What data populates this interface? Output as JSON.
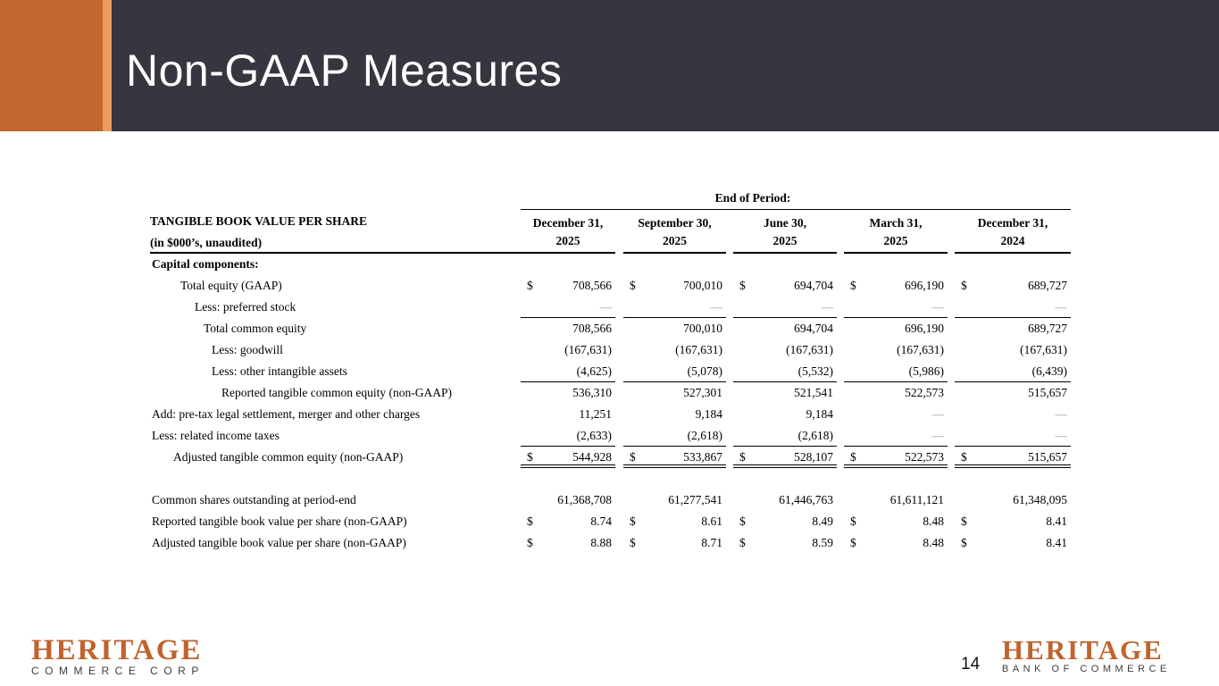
{
  "slide": {
    "title": "Non-GAAP Measures",
    "page_number": "14"
  },
  "colors": {
    "accent_orange": "#C2672F",
    "accent_orange_light": "#EE9B5F",
    "header_dark": "#37353F",
    "logo_orange": "#C0632E",
    "logo_text_dark": "#3D3D3D"
  },
  "table": {
    "group_header": "End of Period:",
    "title_line1": "TANGIBLE BOOK VALUE PER SHARE",
    "title_line2": "(in $000’s, unaudited)",
    "dollar_sign": "$",
    "columns": [
      {
        "month": "December 31,",
        "year": "2025"
      },
      {
        "month": "September 30,",
        "year": "2025"
      },
      {
        "month": "June 30,",
        "year": "2025"
      },
      {
        "month": "March 31,",
        "year": "2025"
      },
      {
        "month": "December 31,",
        "year": "2024"
      }
    ],
    "rows": [
      {
        "label": "Capital components:",
        "values": [
          "",
          "",
          "",
          "",
          ""
        ]
      },
      {
        "label": "Total equity (GAAP)",
        "dollar": true,
        "values": [
          "708,566",
          "700,010",
          "694,704",
          "696,190",
          "689,727"
        ]
      },
      {
        "label": "Less: preferred stock",
        "values": [
          "—",
          "—",
          "—",
          "—",
          "—"
        ]
      },
      {
        "label": "Total common equity",
        "values": [
          "708,566",
          "700,010",
          "694,704",
          "696,190",
          "689,727"
        ]
      },
      {
        "label": "Less: goodwill",
        "values": [
          "(167,631)",
          "(167,631)",
          "(167,631)",
          "(167,631)",
          "(167,631)"
        ]
      },
      {
        "label": "Less: other intangible assets",
        "values": [
          "(4,625)",
          "(5,078)",
          "(5,532)",
          "(5,986)",
          "(6,439)"
        ]
      },
      {
        "label": "Reported tangible common equity (non-GAAP)",
        "values": [
          "536,310",
          "527,301",
          "521,541",
          "522,573",
          "515,657"
        ]
      },
      {
        "label": "Add: pre-tax legal settlement, merger and other charges",
        "values": [
          "11,251",
          "9,184",
          "9,184",
          "—",
          "—"
        ]
      },
      {
        "label": "Less: related income taxes",
        "values": [
          "(2,633)",
          "(2,618)",
          "(2,618)",
          "—",
          "—"
        ]
      },
      {
        "label": "Adjusted tangible common equity (non-GAAP)",
        "dollar": true,
        "values": [
          "544,928",
          "533,867",
          "528,107",
          "522,573",
          "515,657"
        ]
      },
      {
        "label": "Common shares outstanding at period-end",
        "values": [
          "61,368,708",
          "61,277,541",
          "61,446,763",
          "61,611,121",
          "61,348,095"
        ]
      },
      {
        "label": "Reported tangible book value per share (non-GAAP)",
        "dollar": true,
        "values": [
          "8.74",
          "8.61",
          "8.49",
          "8.48",
          "8.41"
        ]
      },
      {
        "label": "Adjusted tangible book value per share (non-GAAP)",
        "dollar": true,
        "values": [
          "8.88",
          "8.71",
          "8.59",
          "8.48",
          "8.41"
        ]
      }
    ]
  },
  "footer": {
    "logo_left": {
      "name": "HERITAGE",
      "subtitle": "COMMERCE CORP"
    },
    "logo_right": {
      "name": "HERITAGE",
      "subtitle": "BANK OF COMMERCE"
    }
  }
}
